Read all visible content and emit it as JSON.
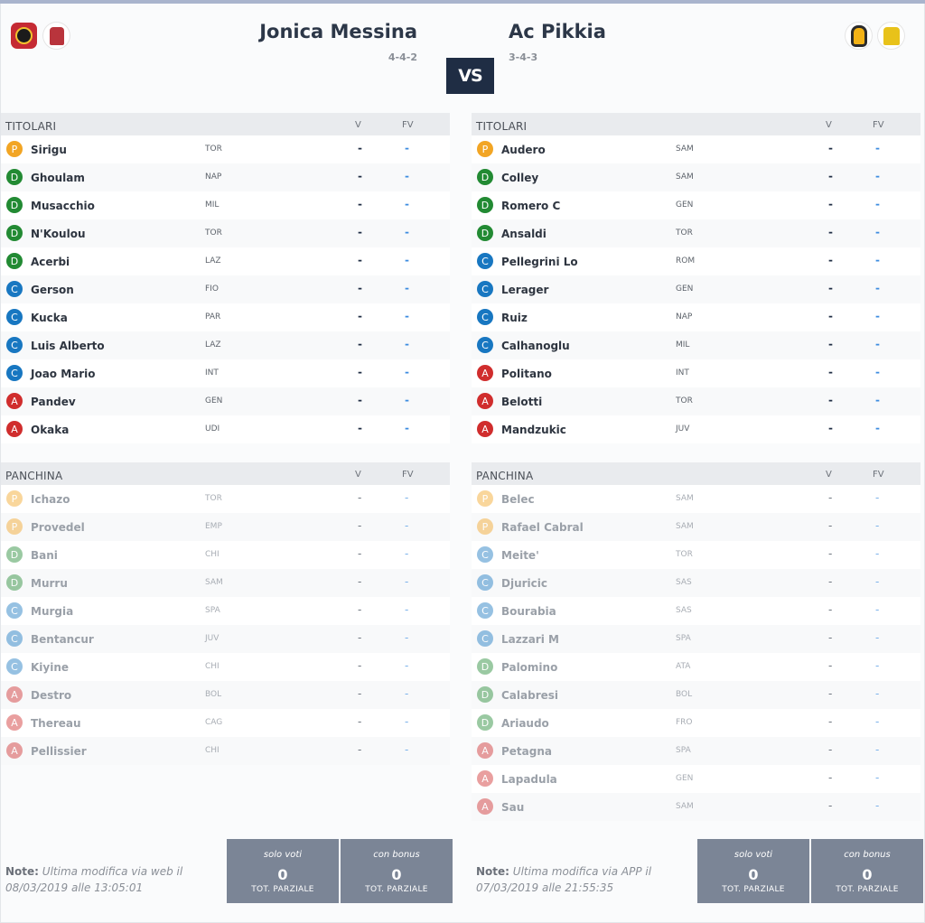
{
  "header": {
    "home": {
      "name": "Jonica Messina",
      "module": "4-4-2",
      "logos": [
        "team-logo",
        "jersey-icon"
      ]
    },
    "away": {
      "name": "Ac Pikkia",
      "module": "3-4-3",
      "logos": [
        "jersey-icon",
        "jersey-icon"
      ]
    },
    "vs": "VS"
  },
  "labels": {
    "titolari": "TITOLARI",
    "panchina": "PANCHINA",
    "v": "V",
    "fv": "FV"
  },
  "home": {
    "starters": [
      {
        "role": "P",
        "name": "Sirigu",
        "team": "TOR",
        "v": "-",
        "fv": "-"
      },
      {
        "role": "D",
        "name": "Ghoulam",
        "team": "NAP",
        "v": "-",
        "fv": "-"
      },
      {
        "role": "D",
        "name": "Musacchio",
        "team": "MIL",
        "v": "-",
        "fv": "-"
      },
      {
        "role": "D",
        "name": "N'Koulou",
        "team": "TOR",
        "v": "-",
        "fv": "-"
      },
      {
        "role": "D",
        "name": "Acerbi",
        "team": "LAZ",
        "v": "-",
        "fv": "-"
      },
      {
        "role": "C",
        "name": "Gerson",
        "team": "FIO",
        "v": "-",
        "fv": "-"
      },
      {
        "role": "C",
        "name": "Kucka",
        "team": "PAR",
        "v": "-",
        "fv": "-"
      },
      {
        "role": "C",
        "name": "Luis Alberto",
        "team": "LAZ",
        "v": "-",
        "fv": "-"
      },
      {
        "role": "C",
        "name": "Joao Mario",
        "team": "INT",
        "v": "-",
        "fv": "-"
      },
      {
        "role": "A",
        "name": "Pandev",
        "team": "GEN",
        "v": "-",
        "fv": "-"
      },
      {
        "role": "A",
        "name": "Okaka",
        "team": "UDI",
        "v": "-",
        "fv": "-"
      }
    ],
    "bench": [
      {
        "role": "P",
        "name": "Ichazo",
        "team": "TOR",
        "v": "-",
        "fv": "-"
      },
      {
        "role": "P",
        "name": "Provedel",
        "team": "EMP",
        "v": "-",
        "fv": "-"
      },
      {
        "role": "D",
        "name": "Bani",
        "team": "CHI",
        "v": "-",
        "fv": "-"
      },
      {
        "role": "D",
        "name": "Murru",
        "team": "SAM",
        "v": "-",
        "fv": "-"
      },
      {
        "role": "C",
        "name": "Murgia",
        "team": "SPA",
        "v": "-",
        "fv": "-"
      },
      {
        "role": "C",
        "name": "Bentancur",
        "team": "JUV",
        "v": "-",
        "fv": "-"
      },
      {
        "role": "C",
        "name": "Kiyine",
        "team": "CHI",
        "v": "-",
        "fv": "-"
      },
      {
        "role": "A",
        "name": "Destro",
        "team": "BOL",
        "v": "-",
        "fv": "-"
      },
      {
        "role": "A",
        "name": "Thereau",
        "team": "CAG",
        "v": "-",
        "fv": "-"
      },
      {
        "role": "A",
        "name": "Pellissier",
        "team": "CHI",
        "v": "-",
        "fv": "-"
      }
    ],
    "note_label": "Note:",
    "note_text": "Ultima modifica via web il 08/03/2019 alle 13:05:01",
    "totals": [
      {
        "label": "solo voti",
        "value": "0",
        "sub": "TOT. PARZIALE"
      },
      {
        "label": "con bonus",
        "value": "0",
        "sub": "TOT. PARZIALE"
      }
    ]
  },
  "away": {
    "starters": [
      {
        "role": "P",
        "name": "Audero",
        "team": "SAM",
        "v": "-",
        "fv": "-"
      },
      {
        "role": "D",
        "name": "Colley",
        "team": "SAM",
        "v": "-",
        "fv": "-"
      },
      {
        "role": "D",
        "name": "Romero C",
        "team": "GEN",
        "v": "-",
        "fv": "-"
      },
      {
        "role": "D",
        "name": "Ansaldi",
        "team": "TOR",
        "v": "-",
        "fv": "-"
      },
      {
        "role": "C",
        "name": "Pellegrini Lo",
        "team": "ROM",
        "v": "-",
        "fv": "-"
      },
      {
        "role": "C",
        "name": "Lerager",
        "team": "GEN",
        "v": "-",
        "fv": "-"
      },
      {
        "role": "C",
        "name": "Ruiz",
        "team": "NAP",
        "v": "-",
        "fv": "-"
      },
      {
        "role": "C",
        "name": "Calhanoglu",
        "team": "MIL",
        "v": "-",
        "fv": "-"
      },
      {
        "role": "A",
        "name": "Politano",
        "team": "INT",
        "v": "-",
        "fv": "-"
      },
      {
        "role": "A",
        "name": "Belotti",
        "team": "TOR",
        "v": "-",
        "fv": "-"
      },
      {
        "role": "A",
        "name": "Mandzukic",
        "team": "JUV",
        "v": "-",
        "fv": "-"
      }
    ],
    "bench": [
      {
        "role": "P",
        "name": "Belec",
        "team": "SAM",
        "v": "-",
        "fv": "-"
      },
      {
        "role": "P",
        "name": "Rafael Cabral",
        "team": "SAM",
        "v": "-",
        "fv": "-"
      },
      {
        "role": "C",
        "name": "Meite'",
        "team": "TOR",
        "v": "-",
        "fv": "-"
      },
      {
        "role": "C",
        "name": "Djuricic",
        "team": "SAS",
        "v": "-",
        "fv": "-"
      },
      {
        "role": "C",
        "name": "Bourabia",
        "team": "SAS",
        "v": "-",
        "fv": "-"
      },
      {
        "role": "C",
        "name": "Lazzari M",
        "team": "SPA",
        "v": "-",
        "fv": "-"
      },
      {
        "role": "D",
        "name": "Palomino",
        "team": "ATA",
        "v": "-",
        "fv": "-"
      },
      {
        "role": "D",
        "name": "Calabresi",
        "team": "BOL",
        "v": "-",
        "fv": "-"
      },
      {
        "role": "D",
        "name": "Ariaudo",
        "team": "FRO",
        "v": "-",
        "fv": "-"
      },
      {
        "role": "A",
        "name": "Petagna",
        "team": "SPA",
        "v": "-",
        "fv": "-"
      },
      {
        "role": "A",
        "name": "Lapadula",
        "team": "GEN",
        "v": "-",
        "fv": "-"
      },
      {
        "role": "A",
        "name": "Sau",
        "team": "SAM",
        "v": "-",
        "fv": "-"
      }
    ],
    "note_label": "Note:",
    "note_text": "Ultima modifica via APP il 07/03/2019 alle 21:55:35",
    "totals": [
      {
        "label": "solo voti",
        "value": "0",
        "sub": "TOT. PARZIALE"
      },
      {
        "label": "con bonus",
        "value": "0",
        "sub": "TOT. PARZIALE"
      }
    ]
  },
  "colors": {
    "P": "#f2a524",
    "D": "#228a33",
    "C": "#1877c1",
    "A": "#d02d2d",
    "vs_bg": "#1f2d44",
    "totals_bg": "#7b8596"
  }
}
